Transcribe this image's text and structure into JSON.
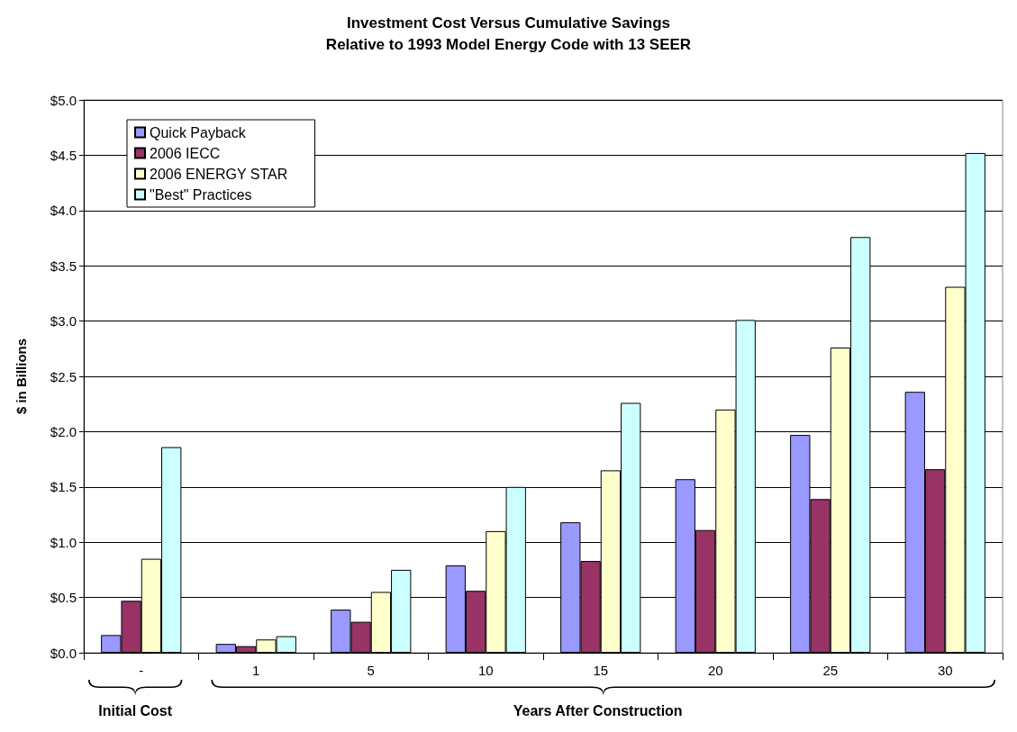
{
  "chart_data": {
    "type": "bar",
    "title": "Investment Cost Versus Cumulative Savings\nRelative to 1993 Model Energy Code with 13 SEER",
    "ylabel": "$ in Billions",
    "categories": [
      "-",
      "1",
      "5",
      "10",
      "15",
      "20",
      "25",
      "30"
    ],
    "series": [
      {
        "name": "Quick Payback",
        "color": "#9999ff",
        "values": [
          0.16,
          0.08,
          0.39,
          0.79,
          1.18,
          1.57,
          1.97,
          2.36
        ]
      },
      {
        "name": "2006 IECC",
        "color": "#993366",
        "values": [
          0.47,
          0.06,
          0.28,
          0.56,
          0.83,
          1.11,
          1.39,
          1.66
        ]
      },
      {
        "name": "2006 ENERGY STAR",
        "color": "#ffffcc",
        "values": [
          0.85,
          0.12,
          0.55,
          1.1,
          1.65,
          2.2,
          2.76,
          3.31
        ]
      },
      {
        "name": "\"Best\" Practices",
        "color": "#ccffff",
        "values": [
          1.86,
          0.15,
          0.75,
          1.5,
          2.26,
          3.01,
          3.76,
          4.52
        ]
      }
    ],
    "ylim": [
      0,
      5
    ],
    "yticks": [
      {
        "value": 0,
        "label": "$0.0"
      },
      {
        "value": 0.5,
        "label": "$0.5"
      },
      {
        "value": 1,
        "label": "$1.0"
      },
      {
        "value": 1.5,
        "label": "$1.5"
      },
      {
        "value": 2,
        "label": "$2.0"
      },
      {
        "value": 2.5,
        "label": "$2.5"
      },
      {
        "value": 3,
        "label": "$3.0"
      },
      {
        "value": 3.5,
        "label": "$3.5"
      },
      {
        "value": 4,
        "label": "$4.0"
      },
      {
        "value": 4.5,
        "label": "$4.5"
      },
      {
        "value": 5,
        "label": "$5.0"
      }
    ],
    "grid": "y",
    "legend": "top left",
    "annotations": [
      "Initial Cost",
      "Years After Construction"
    ]
  }
}
